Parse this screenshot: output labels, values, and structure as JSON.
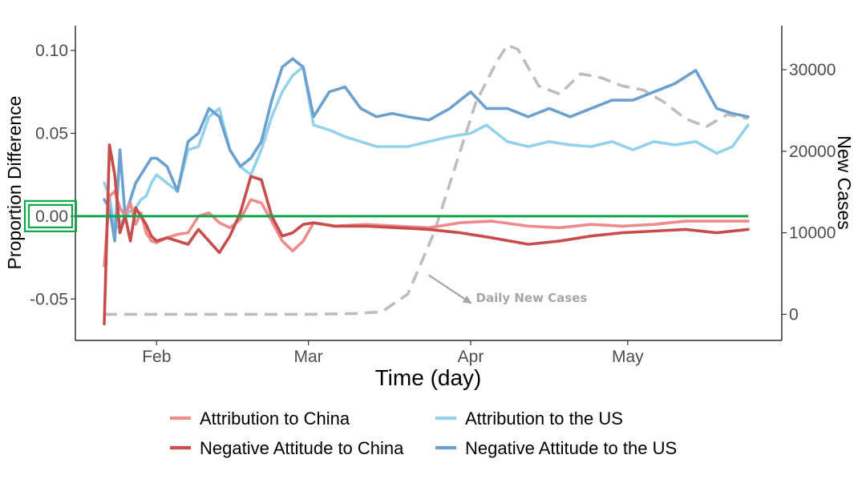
{
  "chart_data": {
    "type": "line",
    "xlabel": "Time (day)",
    "ylabel": "Proportion Difference",
    "y2label": "New Cases",
    "x_domain": [
      "2020-01-22",
      "2020-05-24"
    ],
    "ylim": [
      -0.075,
      0.115
    ],
    "y2lim": [
      -3200,
      35400
    ],
    "x_ticks": [
      {
        "date": "2020-02-01",
        "label": "Feb"
      },
      {
        "date": "2020-03-01",
        "label": "Mar"
      },
      {
        "date": "2020-04-01",
        "label": "Apr"
      },
      {
        "date": "2020-05-01",
        "label": "May"
      }
    ],
    "y_ticks": [
      {
        "value": 0.1,
        "label": "0.10"
      },
      {
        "value": 0.05,
        "label": "0.05"
      },
      {
        "value": 0.0,
        "label": "0.00"
      },
      {
        "value": -0.05,
        "label": "-0.05"
      }
    ],
    "y2_ticks": [
      {
        "value": 30000,
        "label": "30000"
      },
      {
        "value": 20000,
        "label": "20000"
      },
      {
        "value": 10000,
        "label": "10000"
      },
      {
        "value": 0,
        "label": "0"
      }
    ],
    "reference_line": {
      "value": 0.0,
      "color": "#0aa64a"
    },
    "highlight_tick": {
      "value": 0.0,
      "color": "#0aa64a"
    },
    "annotation": {
      "text": "Daily New Cases",
      "color": "#a6a6a6",
      "x": "2020-04-02",
      "y2": 1000,
      "arrow_from": {
        "x": "2020-03-24",
        "y2": 4800
      },
      "arrow_to": {
        "x": "2020-04-01",
        "y2": 1400
      }
    },
    "legend": {
      "position": "bottom",
      "columns": 2
    },
    "series": [
      {
        "name": "Attribution to China",
        "color": "#ee8c8c",
        "axis": "left",
        "style": "solid",
        "x": [
          "2020-01-22",
          "2020-01-23",
          "2020-01-24",
          "2020-01-25",
          "2020-01-26",
          "2020-01-27",
          "2020-01-28",
          "2020-01-29",
          "2020-01-30",
          "2020-01-31",
          "2020-02-01",
          "2020-02-03",
          "2020-02-05",
          "2020-02-07",
          "2020-02-09",
          "2020-02-11",
          "2020-02-13",
          "2020-02-15",
          "2020-02-17",
          "2020-02-19",
          "2020-02-21",
          "2020-02-23",
          "2020-02-25",
          "2020-02-27",
          "2020-02-29",
          "2020-03-02",
          "2020-03-06",
          "2020-03-12",
          "2020-03-18",
          "2020-03-24",
          "2020-03-30",
          "2020-04-05",
          "2020-04-12",
          "2020-04-18",
          "2020-04-24",
          "2020-04-30",
          "2020-05-06",
          "2020-05-12",
          "2020-05-18",
          "2020-05-24"
        ],
        "y": [
          -0.03,
          0.012,
          0.015,
          0.005,
          0.0,
          0.008,
          -0.005,
          0.002,
          -0.01,
          -0.015,
          -0.016,
          -0.013,
          -0.011,
          -0.01,
          0.0,
          0.002,
          -0.004,
          -0.007,
          -0.002,
          0.01,
          0.008,
          -0.003,
          -0.015,
          -0.021,
          -0.015,
          -0.004,
          -0.006,
          -0.005,
          -0.006,
          -0.007,
          -0.004,
          -0.003,
          -0.006,
          -0.007,
          -0.005,
          -0.006,
          -0.005,
          -0.003,
          -0.003,
          -0.003
        ]
      },
      {
        "name": "Negative Attitude to China",
        "color": "#c94c4c",
        "axis": "left",
        "style": "solid",
        "x": [
          "2020-01-22",
          "2020-01-23",
          "2020-01-24",
          "2020-01-25",
          "2020-01-26",
          "2020-01-27",
          "2020-01-28",
          "2020-01-29",
          "2020-01-30",
          "2020-01-31",
          "2020-02-01",
          "2020-02-03",
          "2020-02-05",
          "2020-02-07",
          "2020-02-09",
          "2020-02-11",
          "2020-02-13",
          "2020-02-15",
          "2020-02-17",
          "2020-02-19",
          "2020-02-21",
          "2020-02-23",
          "2020-02-25",
          "2020-02-27",
          "2020-02-29",
          "2020-03-02",
          "2020-03-06",
          "2020-03-12",
          "2020-03-18",
          "2020-03-24",
          "2020-03-30",
          "2020-04-05",
          "2020-04-12",
          "2020-04-18",
          "2020-04-24",
          "2020-04-30",
          "2020-05-06",
          "2020-05-12",
          "2020-05-18",
          "2020-05-24"
        ],
        "y": [
          -0.065,
          0.043,
          0.025,
          -0.01,
          0.0,
          -0.015,
          0.005,
          0.0,
          -0.005,
          -0.012,
          -0.015,
          -0.013,
          -0.015,
          -0.017,
          -0.008,
          -0.015,
          -0.022,
          -0.012,
          0.002,
          0.024,
          0.022,
          0.0,
          -0.012,
          -0.01,
          -0.005,
          -0.004,
          -0.006,
          -0.006,
          -0.007,
          -0.008,
          -0.01,
          -0.013,
          -0.017,
          -0.015,
          -0.012,
          -0.01,
          -0.009,
          -0.008,
          -0.01,
          -0.008
        ]
      },
      {
        "name": "Attribution to the US",
        "color": "#94d2ec",
        "axis": "left",
        "style": "solid",
        "x": [
          "2020-01-22",
          "2020-01-23",
          "2020-01-24",
          "2020-01-25",
          "2020-01-26",
          "2020-01-27",
          "2020-01-28",
          "2020-01-29",
          "2020-01-30",
          "2020-01-31",
          "2020-02-01",
          "2020-02-03",
          "2020-02-05",
          "2020-02-07",
          "2020-02-09",
          "2020-02-11",
          "2020-02-13",
          "2020-02-15",
          "2020-02-17",
          "2020-02-19",
          "2020-02-21",
          "2020-02-23",
          "2020-02-25",
          "2020-02-27",
          "2020-02-29",
          "2020-03-02",
          "2020-03-05",
          "2020-03-08",
          "2020-03-11",
          "2020-03-14",
          "2020-03-17",
          "2020-03-20",
          "2020-03-24",
          "2020-03-28",
          "2020-04-01",
          "2020-04-04",
          "2020-04-08",
          "2020-04-12",
          "2020-04-16",
          "2020-04-20",
          "2020-04-24",
          "2020-04-28",
          "2020-05-02",
          "2020-05-06",
          "2020-05-10",
          "2020-05-14",
          "2020-05-18",
          "2020-05-21",
          "2020-05-24"
        ],
        "y": [
          0.02,
          0.012,
          -0.008,
          -0.005,
          0.0,
          0.003,
          0.005,
          0.01,
          0.012,
          0.02,
          0.025,
          0.02,
          0.015,
          0.04,
          0.042,
          0.06,
          0.065,
          0.04,
          0.03,
          0.025,
          0.04,
          0.06,
          0.075,
          0.085,
          0.09,
          0.055,
          0.052,
          0.048,
          0.045,
          0.042,
          0.042,
          0.042,
          0.045,
          0.048,
          0.05,
          0.055,
          0.045,
          0.042,
          0.045,
          0.043,
          0.042,
          0.045,
          0.04,
          0.045,
          0.043,
          0.045,
          0.038,
          0.042,
          0.055
        ]
      },
      {
        "name": "Negative Attitude to the US",
        "color": "#6ca1cf",
        "axis": "left",
        "style": "solid",
        "x": [
          "2020-01-22",
          "2020-01-23",
          "2020-01-24",
          "2020-01-25",
          "2020-01-26",
          "2020-01-27",
          "2020-01-28",
          "2020-01-29",
          "2020-01-30",
          "2020-01-31",
          "2020-02-01",
          "2020-02-03",
          "2020-02-05",
          "2020-02-07",
          "2020-02-09",
          "2020-02-11",
          "2020-02-13",
          "2020-02-15",
          "2020-02-17",
          "2020-02-19",
          "2020-02-21",
          "2020-02-23",
          "2020-02-25",
          "2020-02-27",
          "2020-02-29",
          "2020-03-02",
          "2020-03-05",
          "2020-03-08",
          "2020-03-11",
          "2020-03-14",
          "2020-03-17",
          "2020-03-20",
          "2020-03-24",
          "2020-03-28",
          "2020-04-01",
          "2020-04-04",
          "2020-04-08",
          "2020-04-12",
          "2020-04-16",
          "2020-04-20",
          "2020-04-24",
          "2020-04-28",
          "2020-05-02",
          "2020-05-06",
          "2020-05-10",
          "2020-05-14",
          "2020-05-18",
          "2020-05-21",
          "2020-05-24"
        ],
        "y": [
          0.01,
          0.005,
          -0.015,
          0.04,
          0.0,
          0.01,
          0.02,
          0.025,
          0.03,
          0.035,
          0.035,
          0.03,
          0.015,
          0.045,
          0.05,
          0.065,
          0.06,
          0.04,
          0.03,
          0.035,
          0.045,
          0.07,
          0.09,
          0.095,
          0.09,
          0.06,
          0.075,
          0.078,
          0.065,
          0.06,
          0.062,
          0.06,
          0.058,
          0.065,
          0.075,
          0.065,
          0.065,
          0.06,
          0.065,
          0.06,
          0.065,
          0.07,
          0.07,
          0.075,
          0.08,
          0.088,
          0.065,
          0.062,
          0.06
        ]
      },
      {
        "name": "Daily New Cases",
        "color": "#bdbdbd",
        "axis": "right",
        "style": "dashed",
        "x": [
          "2020-01-22",
          "2020-02-01",
          "2020-02-15",
          "2020-03-01",
          "2020-03-10",
          "2020-03-15",
          "2020-03-20",
          "2020-03-25",
          "2020-03-30",
          "2020-04-02",
          "2020-04-06",
          "2020-04-08",
          "2020-04-10",
          "2020-04-14",
          "2020-04-18",
          "2020-04-22",
          "2020-04-26",
          "2020-04-30",
          "2020-05-04",
          "2020-05-08",
          "2020-05-12",
          "2020-05-16",
          "2020-05-20",
          "2020-05-24"
        ],
        "y": [
          0,
          0,
          0,
          0,
          100,
          300,
          2500,
          10000,
          20000,
          26000,
          31000,
          33000,
          32500,
          28000,
          27000,
          29500,
          29000,
          28000,
          27500,
          26000,
          24000,
          23000,
          24500,
          24000
        ]
      }
    ]
  }
}
